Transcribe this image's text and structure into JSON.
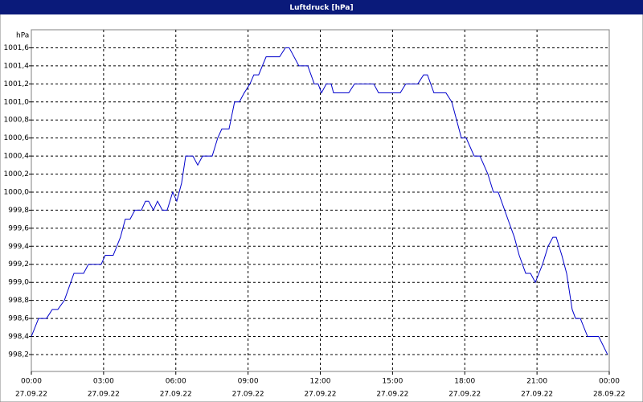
{
  "chart_data": {
    "type": "line",
    "title": "Luftdruck [hPa]",
    "y_label": "hPa",
    "x": [
      0,
      0.3,
      0.63,
      0.87,
      1.1,
      1.37,
      1.77,
      2.17,
      2.37,
      2.9,
      3.07,
      3.4,
      3.7,
      3.9,
      4.1,
      4.3,
      4.57,
      4.74,
      4.87,
      5.07,
      5.24,
      5.44,
      5.64,
      5.87,
      6.04,
      6.24,
      6.41,
      6.71,
      6.91,
      7.11,
      7.51,
      7.74,
      7.91,
      8.21,
      8.44,
      8.64,
      8.84,
      9.08,
      9.24,
      9.44,
      9.75,
      10.31,
      10.55,
      10.71,
      11.11,
      11.48,
      11.75,
      11.91,
      12.05,
      12.25,
      12.45,
      12.55,
      13.18,
      13.42,
      14.22,
      14.42,
      15.32,
      15.55,
      16.05,
      16.29,
      16.45,
      16.72,
      17.22,
      17.46,
      17.66,
      17.86,
      18.06,
      18.39,
      18.63,
      18.96,
      19.19,
      19.39,
      19.79,
      20.06,
      20.26,
      20.53,
      20.73,
      20.93,
      21.23,
      21.46,
      21.66,
      21.8,
      22.03,
      22.23,
      22.46,
      22.6,
      22.8,
      23.1,
      23.56,
      23.93
    ],
    "series": [
      {
        "name": "Luftdruck",
        "color": "#0000cc",
        "values": [
          998.4,
          998.6,
          998.6,
          998.7,
          998.7,
          998.8,
          999.1,
          999.1,
          999.2,
          999.2,
          999.3,
          999.3,
          999.5,
          999.7,
          999.7,
          999.8,
          999.8,
          999.9,
          999.9,
          999.8,
          999.9,
          999.8,
          999.8,
          1000.0,
          999.9,
          1000.1,
          1000.4,
          1000.4,
          1000.3,
          1000.4,
          1000.4,
          1000.6,
          1000.7,
          1000.7,
          1001.0,
          1001.0,
          1001.1,
          1001.2,
          1001.3,
          1001.3,
          1001.5,
          1001.5,
          1001.6,
          1001.6,
          1001.4,
          1001.4,
          1001.2,
          1001.2,
          1001.1,
          1001.2,
          1001.2,
          1001.1,
          1001.1,
          1001.2,
          1001.2,
          1001.1,
          1001.1,
          1001.2,
          1001.2,
          1001.3,
          1001.3,
          1001.1,
          1001.1,
          1001.0,
          1000.8,
          1000.6,
          1000.6,
          1000.4,
          1000.4,
          1000.2,
          1000.0,
          1000.0,
          999.7,
          999.5,
          999.3,
          999.1,
          999.1,
          999.0,
          999.2,
          999.4,
          999.5,
          999.5,
          999.3,
          999.1,
          998.7,
          998.6,
          998.6,
          998.4,
          998.4,
          998.2
        ]
      }
    ],
    "xlim": [
      0,
      24
    ],
    "xticks": [
      {
        "value": 0,
        "label": "00:00"
      },
      {
        "value": 3,
        "label": "03:00"
      },
      {
        "value": 6,
        "label": "06:00"
      },
      {
        "value": 9,
        "label": "09:00"
      },
      {
        "value": 12,
        "label": "12:00"
      },
      {
        "value": 15,
        "label": "15:00"
      },
      {
        "value": 18,
        "label": "18:00"
      },
      {
        "value": 21,
        "label": "21:00"
      },
      {
        "value": 24,
        "label": "00:00"
      }
    ],
    "xtick_dates": [
      "27.09.22",
      "27.09.22",
      "27.09.22",
      "27.09.22",
      "27.09.22",
      "27.09.22",
      "27.09.22",
      "27.09.22",
      "28.09.22"
    ],
    "ylim": [
      998.0125,
      1001.8
    ],
    "yticks": [
      {
        "value": 998.2,
        "label": "998,2"
      },
      {
        "value": 998.4,
        "label": "998,4"
      },
      {
        "value": 998.6,
        "label": "998,6"
      },
      {
        "value": 998.8,
        "label": "998,8"
      },
      {
        "value": 999.0,
        "label": "999,0"
      },
      {
        "value": 999.2,
        "label": "999,2"
      },
      {
        "value": 999.4,
        "label": "999,4"
      },
      {
        "value": 999.6,
        "label": "999,6"
      },
      {
        "value": 999.8,
        "label": "999,8"
      },
      {
        "value": 1000.0,
        "label": "1000,0"
      },
      {
        "value": 1000.2,
        "label": "1000,2"
      },
      {
        "value": 1000.4,
        "label": "1000,4"
      },
      {
        "value": 1000.6,
        "label": "1000,6"
      },
      {
        "value": 1000.8,
        "label": "1000,8"
      },
      {
        "value": 1001.0,
        "label": "1001,0"
      },
      {
        "value": 1001.2,
        "label": "1001,2"
      },
      {
        "value": 1001.4,
        "label": "1001,4"
      },
      {
        "value": 1001.6,
        "label": "1001,6"
      }
    ],
    "grid": true
  }
}
